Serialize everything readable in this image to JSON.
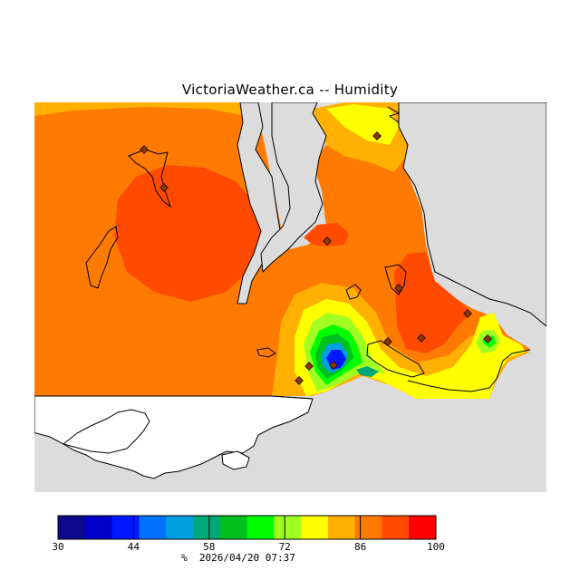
{
  "title": "VictoriaWeather.ca -- Humidity",
  "colorbar": {
    "colors": [
      "#0c0a8c",
      "#0000c8",
      "#0018ff",
      "#0070ff",
      "#00a0e0",
      "#00a878",
      "#00c020",
      "#00ff00",
      "#a0ff20",
      "#ffff00",
      "#ffb000",
      "#ff7a00",
      "#ff4a00",
      "#ff0000"
    ],
    "ticks": [
      "30",
      "44",
      "58",
      "72",
      "86",
      "100"
    ]
  },
  "stamp": {
    "units": "%",
    "timestamp": "2026/04/20 07:37"
  },
  "field_colors": {
    "water": "#dcdcdc",
    "land_outside": "#ffffff",
    "base": "#ff7a00",
    "high": "#ff4a00",
    "mid": "#ffb000",
    "yellow": "#ffff00",
    "green": "#00c020",
    "blue": "#0018ff"
  },
  "stations": [
    "station-1",
    "station-2",
    "station-3",
    "station-4",
    "station-5",
    "station-6",
    "station-7",
    "station-8",
    "station-9",
    "station-10",
    "station-11"
  ]
}
